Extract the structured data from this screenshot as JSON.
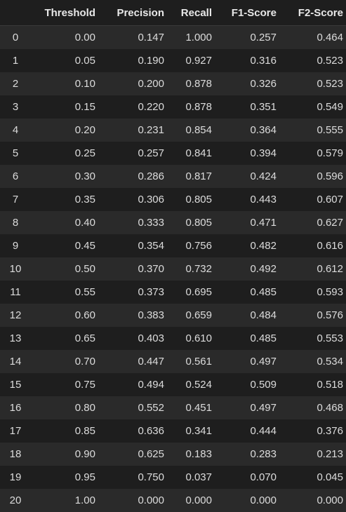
{
  "table": {
    "columns": [
      "",
      "Threshold",
      "Precision",
      "Recall",
      "F1-Score",
      "F2-Score"
    ],
    "rows": [
      [
        "0",
        "0.00",
        "0.147",
        "1.000",
        "0.257",
        "0.464"
      ],
      [
        "1",
        "0.05",
        "0.190",
        "0.927",
        "0.316",
        "0.523"
      ],
      [
        "2",
        "0.10",
        "0.200",
        "0.878",
        "0.326",
        "0.523"
      ],
      [
        "3",
        "0.15",
        "0.220",
        "0.878",
        "0.351",
        "0.549"
      ],
      [
        "4",
        "0.20",
        "0.231",
        "0.854",
        "0.364",
        "0.555"
      ],
      [
        "5",
        "0.25",
        "0.257",
        "0.841",
        "0.394",
        "0.579"
      ],
      [
        "6",
        "0.30",
        "0.286",
        "0.817",
        "0.424",
        "0.596"
      ],
      [
        "7",
        "0.35",
        "0.306",
        "0.805",
        "0.443",
        "0.607"
      ],
      [
        "8",
        "0.40",
        "0.333",
        "0.805",
        "0.471",
        "0.627"
      ],
      [
        "9",
        "0.45",
        "0.354",
        "0.756",
        "0.482",
        "0.616"
      ],
      [
        "10",
        "0.50",
        "0.370",
        "0.732",
        "0.492",
        "0.612"
      ],
      [
        "11",
        "0.55",
        "0.373",
        "0.695",
        "0.485",
        "0.593"
      ],
      [
        "12",
        "0.60",
        "0.383",
        "0.659",
        "0.484",
        "0.576"
      ],
      [
        "13",
        "0.65",
        "0.403",
        "0.610",
        "0.485",
        "0.553"
      ],
      [
        "14",
        "0.70",
        "0.447",
        "0.561",
        "0.497",
        "0.534"
      ],
      [
        "15",
        "0.75",
        "0.494",
        "0.524",
        "0.509",
        "0.518"
      ],
      [
        "16",
        "0.80",
        "0.552",
        "0.451",
        "0.497",
        "0.468"
      ],
      [
        "17",
        "0.85",
        "0.636",
        "0.341",
        "0.444",
        "0.376"
      ],
      [
        "18",
        "0.90",
        "0.625",
        "0.183",
        "0.283",
        "0.213"
      ],
      [
        "19",
        "0.95",
        "0.750",
        "0.037",
        "0.070",
        "0.045"
      ],
      [
        "20",
        "1.00",
        "0.000",
        "0.000",
        "0.000",
        "0.000"
      ]
    ]
  }
}
